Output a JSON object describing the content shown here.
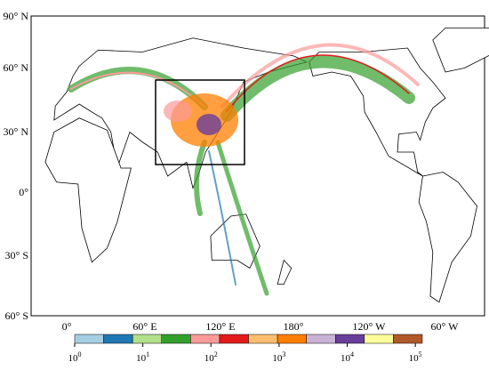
{
  "map": {
    "lat_labels": [
      "90° N",
      "60° N",
      "30° N",
      "0°",
      "30° S",
      "60° S"
    ],
    "lon_labels": [
      "0°",
      "60° E",
      "120° E",
      "180°",
      "120° W",
      "60° W"
    ],
    "colorbar": {
      "colors": [
        "#a6cee3",
        "#1f78b4",
        "#b2df8a",
        "#33a02c",
        "#fb9a99",
        "#e31a1c",
        "#fdbf6f",
        "#ff7f00",
        "#cab2d6",
        "#6a3d9a",
        "#ffff99",
        "#b15928"
      ],
      "labels": [
        {
          "base": "10",
          "exp": "0"
        },
        {
          "base": "10",
          "exp": "1"
        },
        {
          "base": "10",
          "exp": "2"
        },
        {
          "base": "10",
          "exp": "3"
        },
        {
          "base": "10",
          "exp": "4"
        },
        {
          "base": "10",
          "exp": "5"
        }
      ]
    }
  }
}
